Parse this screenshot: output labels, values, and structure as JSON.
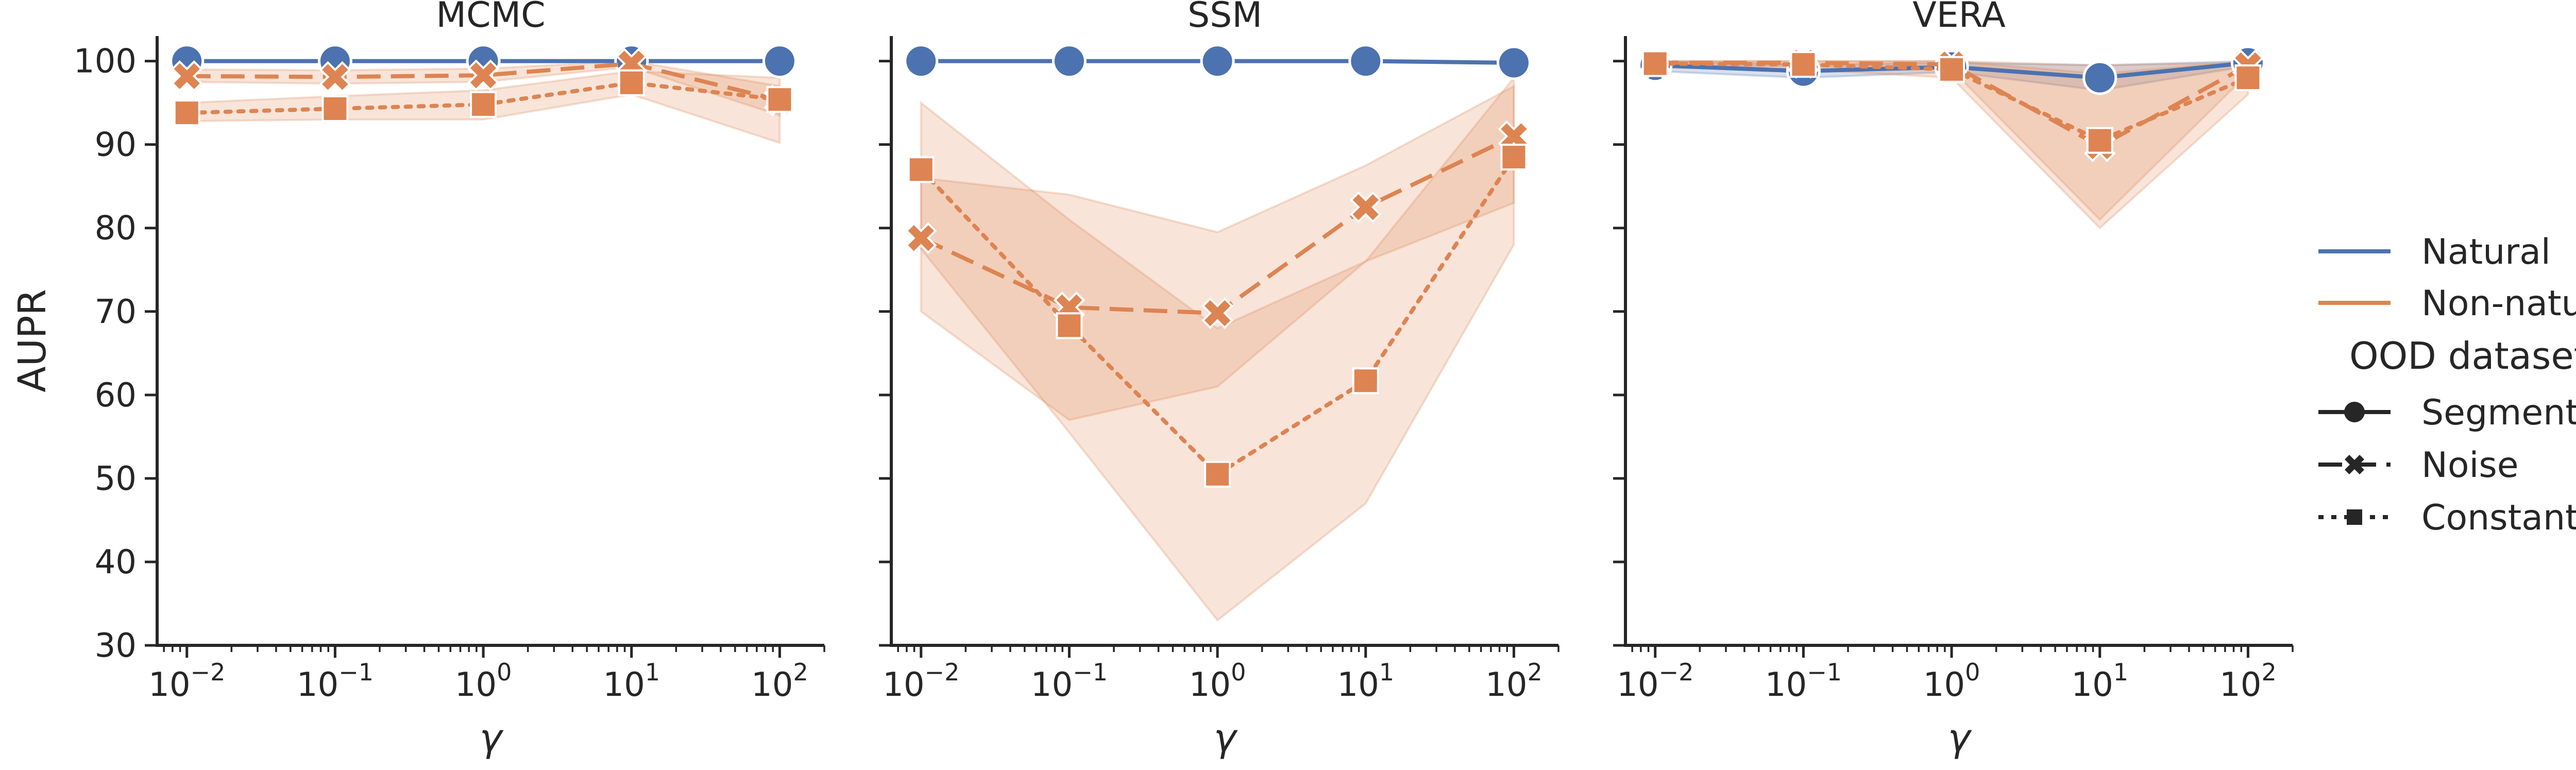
{
  "colors": {
    "natural": "#4c72b0",
    "non_natural": "#dd8452",
    "axis": "#262626",
    "marker_edge": "#ffffff"
  },
  "legend": {
    "items": [
      {
        "label": "Natural",
        "kind": "line",
        "color": "#4c72b0",
        "dash": "solid"
      },
      {
        "label": "Non-natural",
        "kind": "line",
        "color": "#dd8452",
        "dash": "solid"
      }
    ],
    "title": "OOD dataset",
    "styles": [
      {
        "label": "Segment OOD",
        "marker": "circle",
        "dash": "solid"
      },
      {
        "label": "Noise",
        "marker": "x",
        "dash": "dashed"
      },
      {
        "label": "Constant",
        "marker": "square",
        "dash": "dotted"
      }
    ],
    "placement": "right"
  },
  "chart_data": [
    {
      "type": "line",
      "title": "MCMC",
      "xlabel": "γ",
      "ylabel": "AUPR",
      "xscale": "log",
      "xlim": [
        0.0063,
        200
      ],
      "ylim": [
        30,
        103
      ],
      "y_ticks": [
        30,
        40,
        50,
        60,
        70,
        80,
        90,
        100
      ],
      "x_ticks": [
        {
          "base": "10",
          "exp": "−2"
        },
        {
          "base": "10",
          "exp": "−1"
        },
        {
          "base": "10",
          "exp": "0"
        },
        {
          "base": "10",
          "exp": "1"
        },
        {
          "base": "10",
          "exp": "2"
        }
      ],
      "x": [
        0.01,
        0.1,
        1,
        10,
        100
      ],
      "grid": false,
      "series": [
        {
          "group": "Natural",
          "style": "Segment OOD",
          "values": [
            100,
            100,
            100,
            100,
            100
          ],
          "band": null
        },
        {
          "group": "Non-natural",
          "style": "Noise",
          "values": [
            98.2,
            98.1,
            98.3,
            99.7,
            95.3
          ],
          "band": [
            [
              97.5,
              99.0
            ],
            [
              97.3,
              98.9
            ],
            [
              97.5,
              99.1
            ],
            [
              99.3,
              100
            ],
            [
              93.5,
              97.0
            ]
          ]
        },
        {
          "group": "Non-natural",
          "style": "Constant",
          "values": [
            93.8,
            94.3,
            94.8,
            97.4,
            95.4
          ],
          "band": [
            [
              92.8,
              95.0
            ],
            [
              93.0,
              95.8
            ],
            [
              93.0,
              96.5
            ],
            [
              96.0,
              98.8
            ],
            [
              90.2,
              98.0
            ]
          ]
        }
      ]
    },
    {
      "type": "line",
      "title": "SSM",
      "xlabel": "γ",
      "ylabel": "",
      "xscale": "log",
      "xlim": [
        0.0063,
        200
      ],
      "ylim": [
        30,
        103
      ],
      "y_ticks": [
        30,
        40,
        50,
        60,
        70,
        80,
        90,
        100
      ],
      "x_ticks": [
        {
          "base": "10",
          "exp": "−2"
        },
        {
          "base": "10",
          "exp": "−1"
        },
        {
          "base": "10",
          "exp": "0"
        },
        {
          "base": "10",
          "exp": "1"
        },
        {
          "base": "10",
          "exp": "2"
        }
      ],
      "x": [
        0.01,
        0.1,
        1,
        10,
        100
      ],
      "grid": false,
      "series": [
        {
          "group": "Natural",
          "style": "Segment OOD",
          "values": [
            100,
            100,
            100,
            100,
            99.8
          ],
          "band": null
        },
        {
          "group": "Non-natural",
          "style": "Noise",
          "values": [
            78.8,
            70.5,
            69.8,
            82.5,
            91.0
          ],
          "band": [
            [
              70.0,
              86.0
            ],
            [
              57.0,
              84.0
            ],
            [
              61.0,
              79.5
            ],
            [
              76.0,
              87.5
            ],
            [
              83.0,
              97.0
            ]
          ]
        },
        {
          "group": "Non-natural",
          "style": "Constant",
          "values": [
            87.0,
            68.3,
            50.5,
            61.7,
            88.5
          ],
          "band": [
            [
              77.5,
              95.0
            ],
            [
              55.5,
              81.0
            ],
            [
              33.0,
              68.0
            ],
            [
              47.0,
              76.0
            ],
            [
              78.0,
              98.0
            ]
          ]
        }
      ]
    },
    {
      "type": "line",
      "title": "VERA",
      "xlabel": "γ",
      "ylabel": "",
      "xscale": "log",
      "xlim": [
        0.0063,
        200
      ],
      "ylim": [
        30,
        103
      ],
      "y_ticks": [
        30,
        40,
        50,
        60,
        70,
        80,
        90,
        100
      ],
      "x_ticks": [
        {
          "base": "10",
          "exp": "−2"
        },
        {
          "base": "10",
          "exp": "−1"
        },
        {
          "base": "10",
          "exp": "0"
        },
        {
          "base": "10",
          "exp": "1"
        },
        {
          "base": "10",
          "exp": "2"
        }
      ],
      "x": [
        0.01,
        0.1,
        1,
        10,
        100
      ],
      "grid": false,
      "series": [
        {
          "group": "Natural",
          "style": "Segment OOD",
          "values": [
            99.5,
            98.8,
            99.3,
            98.0,
            99.8
          ],
          "band": [
            [
              98.8,
              100
            ],
            [
              98.0,
              99.6
            ],
            [
              98.7,
              99.8
            ],
            [
              96.5,
              99.5
            ],
            [
              99.4,
              100
            ]
          ]
        },
        {
          "group": "Non-natural",
          "style": "Noise",
          "values": [
            99.8,
            99.8,
            99.6,
            89.8,
            99.5
          ],
          "band": [
            [
              99.4,
              100
            ],
            [
              99.4,
              100
            ],
            [
              99.0,
              100
            ],
            [
              81.0,
              98.5
            ],
            [
              98.5,
              100
            ]
          ]
        },
        {
          "group": "Non-natural",
          "style": "Constant",
          "values": [
            99.7,
            99.6,
            99.0,
            90.5,
            98.0
          ],
          "band": [
            [
              99.2,
              100
            ],
            [
              99.0,
              100
            ],
            [
              98.0,
              100
            ],
            [
              80.0,
              99.5
            ],
            [
              96.0,
              99.8
            ]
          ]
        }
      ]
    }
  ]
}
